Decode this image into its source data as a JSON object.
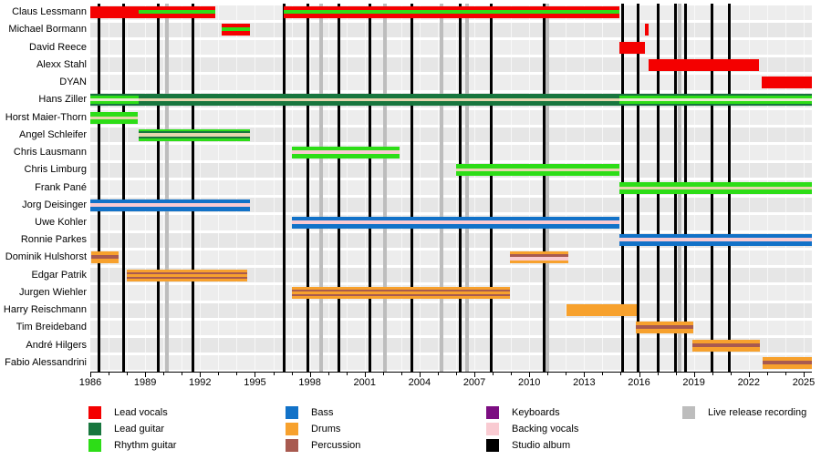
{
  "chart_data": {
    "type": "bar",
    "subtype": "gantt-band-member-timeline",
    "x_axis": {
      "min": 1986,
      "max": 2025.45,
      "tick_years": [
        1986,
        1989,
        1992,
        1995,
        1998,
        2001,
        2004,
        2007,
        2010,
        2013,
        2016,
        2019,
        2022,
        2025
      ],
      "minor_tick_every_years": 1
    },
    "members": [
      {
        "name": "Claus Lessmann",
        "bars": [
          {
            "from": 1986.0,
            "to": 1988.65,
            "pattern": "red_solid"
          },
          {
            "from": 1988.65,
            "to": 1992.85,
            "pattern": "red_green"
          },
          {
            "from": 1996.55,
            "to": 2014.95,
            "pattern": "red_green"
          }
        ]
      },
      {
        "name": "Michael Bormann",
        "bars": [
          {
            "from": 1993.2,
            "to": 1994.75,
            "pattern": "red_green"
          },
          {
            "from": 2016.3,
            "to": 2016.5,
            "pattern": "red_solid"
          }
        ]
      },
      {
        "name": "David Reece",
        "bars": [
          {
            "from": 2014.95,
            "to": 2016.3,
            "pattern": "red_solid"
          }
        ]
      },
      {
        "name": "Alexx Stahl",
        "bars": [
          {
            "from": 2016.5,
            "to": 2022.55,
            "pattern": "red_solid"
          }
        ]
      },
      {
        "name": "DYAN",
        "bars": [
          {
            "from": 2022.7,
            "to": 2025.45,
            "pattern": "red_solid"
          }
        ]
      },
      {
        "name": "Hans Ziller",
        "bars": [
          {
            "from": 1986.0,
            "to": 1988.65,
            "pattern": "dgreen_bgreen_pale"
          },
          {
            "from": 1988.65,
            "to": 2014.95,
            "pattern": "dgreen_tan"
          },
          {
            "from": 2014.95,
            "to": 2025.45,
            "pattern": "dgreen_bgreen_pale"
          }
        ]
      },
      {
        "name": "Horst Maier-Thorn",
        "bars": [
          {
            "from": 1986.0,
            "to": 1988.6,
            "pattern": "bgreen_tan"
          }
        ]
      },
      {
        "name": "Angel Schleifer",
        "bars": [
          {
            "from": 1988.65,
            "to": 1994.75,
            "pattern": "bgreen_dgreen_tan"
          }
        ]
      },
      {
        "name": "Chris Lausmann",
        "bars": [
          {
            "from": 1997.0,
            "to": 2002.9,
            "pattern": "bgreen_pink"
          }
        ]
      },
      {
        "name": "Chris Limburg",
        "bars": [
          {
            "from": 2006.0,
            "to": 2014.95,
            "pattern": "bgreen_tan"
          }
        ]
      },
      {
        "name": "Frank Pané",
        "bars": [
          {
            "from": 2014.95,
            "to": 2025.45,
            "pattern": "bgreen_tan"
          }
        ]
      },
      {
        "name": "Jorg Deisinger",
        "bars": [
          {
            "from": 1986.0,
            "to": 1994.75,
            "pattern": "blue_pink"
          }
        ]
      },
      {
        "name": "Uwe Kohler",
        "bars": [
          {
            "from": 1997.0,
            "to": 2014.95,
            "pattern": "blue_pink"
          }
        ]
      },
      {
        "name": "Ronnie Parkes",
        "bars": [
          {
            "from": 2014.95,
            "to": 2025.45,
            "pattern": "blue_pink"
          }
        ]
      },
      {
        "name": "Dominik Hulshorst",
        "bars": [
          {
            "from": 1986.05,
            "to": 1987.55,
            "pattern": "orange_brown"
          },
          {
            "from": 2008.95,
            "to": 2012.15,
            "pattern": "orange_brown_pink"
          }
        ]
      },
      {
        "name": "Edgar Patrik",
        "bars": [
          {
            "from": 1988.0,
            "to": 1994.6,
            "pattern": "orange_brown2"
          }
        ]
      },
      {
        "name": "Jurgen Wiehler",
        "bars": [
          {
            "from": 1997.0,
            "to": 2008.95,
            "pattern": "orange_brown2"
          }
        ]
      },
      {
        "name": "Harry Reischmann",
        "bars": [
          {
            "from": 2012.05,
            "to": 2015.85,
            "pattern": "orange_solid"
          }
        ]
      },
      {
        "name": "Tim Breideband",
        "bars": [
          {
            "from": 2015.8,
            "to": 2018.95,
            "pattern": "orange_brown"
          }
        ]
      },
      {
        "name": "André Hilgers",
        "bars": [
          {
            "from": 2018.9,
            "to": 2022.6,
            "pattern": "orange_brown"
          }
        ]
      },
      {
        "name": "Fabio Alessandrini",
        "bars": [
          {
            "from": 2022.75,
            "to": 2025.45,
            "pattern": "orange_brown"
          }
        ]
      }
    ],
    "studio_album_years": [
      1986.45,
      1987.8,
      1989.7,
      1991.6,
      1996.6,
      1997.9,
      1999.6,
      2001.3,
      2003.6,
      2006.2,
      2007.9,
      2010.8,
      2015.1,
      2015.95,
      2017.05,
      2018.0,
      2018.55,
      2020.0,
      2020.95
    ],
    "live_recording_years": [
      1990.2,
      1998.6,
      2002.1,
      2005.2,
      2006.6,
      2011.0,
      2018.2
    ]
  },
  "patterns": {
    "red_solid": [
      [
        "red",
        13
      ]
    ],
    "red_green": [
      [
        "red",
        4
      ],
      [
        "bright_green",
        4
      ],
      [
        "red",
        5
      ]
    ],
    "dgreen_bgreen_pale": [
      [
        "dark_green",
        2
      ],
      [
        "bright_green",
        3
      ],
      [
        "pale",
        3
      ],
      [
        "bright_green",
        3
      ],
      [
        "dark_green",
        2
      ]
    ],
    "dgreen_tan": [
      [
        "dark_green",
        5
      ],
      [
        "tan",
        3
      ],
      [
        "dark_green",
        5
      ]
    ],
    "bgreen_tan": [
      [
        "bright_green",
        5
      ],
      [
        "tan",
        3
      ],
      [
        "bright_green",
        5
      ]
    ],
    "bgreen_dgreen_tan": [
      [
        "bright_green",
        2
      ],
      [
        "dark_green",
        2
      ],
      [
        "tan",
        4
      ],
      [
        "dark_green",
        2
      ],
      [
        "bright_green",
        3
      ]
    ],
    "bgreen_pink": [
      [
        "bright_green",
        4
      ],
      [
        "pink",
        4
      ],
      [
        "bright_green",
        5
      ]
    ],
    "blue_pink": [
      [
        "blue",
        4
      ],
      [
        "pink",
        4
      ],
      [
        "blue",
        5
      ]
    ],
    "orange_solid": [
      [
        "orange",
        13
      ]
    ],
    "orange_brown": [
      [
        "orange",
        4
      ],
      [
        "brown",
        4
      ],
      [
        "orange",
        5
      ]
    ],
    "orange_brown2": [
      [
        "orange",
        3
      ],
      [
        "brown",
        2
      ],
      [
        "orange",
        3
      ],
      [
        "brown",
        2
      ],
      [
        "orange",
        3
      ]
    ],
    "orange_brown_pink": [
      [
        "orange",
        3
      ],
      [
        "brown",
        3
      ],
      [
        "pink",
        4
      ],
      [
        "orange",
        3
      ]
    ]
  },
  "colors": {
    "red": "#f40000",
    "dark_green": "#18763e",
    "bright_green": "#2ddd17",
    "blue": "#1272c8",
    "orange": "#f7a12d",
    "brown": "#a85a50",
    "purple": "#7c0d82",
    "pink": "#f9cbd2",
    "tan": "#e7d6ae",
    "pale": "#eaedcf",
    "black": "#000000",
    "gray": "#bdbdbd",
    "band_odd": "#ededed",
    "band_even": "#e6e6e6"
  },
  "legend": {
    "columns": [
      [
        {
          "label": "Lead vocals",
          "color": "red"
        },
        {
          "label": "Lead guitar",
          "color": "dark_green"
        },
        {
          "label": "Rhythm guitar",
          "color": "bright_green"
        }
      ],
      [
        {
          "label": "Bass",
          "color": "blue"
        },
        {
          "label": "Drums",
          "color": "orange"
        },
        {
          "label": "Percussion",
          "color": "brown"
        }
      ],
      [
        {
          "label": "Keyboards",
          "color": "purple"
        },
        {
          "label": "Backing vocals",
          "color": "pink"
        },
        {
          "label": "Studio album",
          "color": "black"
        }
      ],
      [
        {
          "label": "Live release recording",
          "color": "gray"
        }
      ]
    ]
  }
}
